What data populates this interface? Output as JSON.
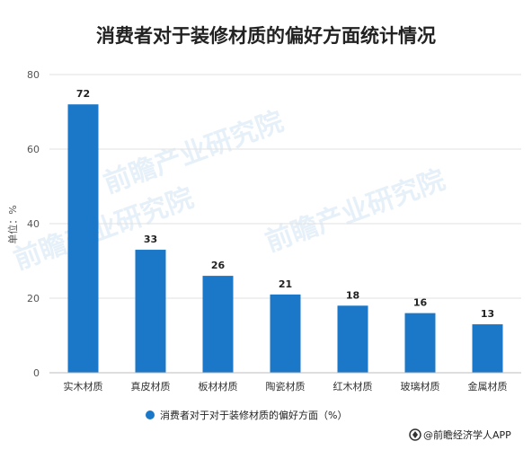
{
  "chart_data": {
    "type": "bar",
    "title": "消费者对于装修材质的偏好方面统计情况",
    "ylabel": "单位：%",
    "categories": [
      "实木材质",
      "真皮材质",
      "板材材质",
      "陶瓷材质",
      "红木材质",
      "玻璃材质",
      "金属材质"
    ],
    "series": [
      {
        "name": "消费者对于对于装修材质的偏好方面（%）",
        "values": [
          72,
          33,
          26,
          21,
          18,
          16,
          13
        ]
      }
    ],
    "ylim": [
      0,
      80
    ],
    "yticks": [
      0,
      20,
      40,
      60,
      80
    ],
    "grid": true,
    "legend_position": "bottom",
    "color": "#1b78c8"
  },
  "credit": {
    "text": "@前瞻经济学人APP",
    "icon": "brand-logo-icon"
  },
  "watermark": {
    "text": "前瞻产业研究院"
  }
}
